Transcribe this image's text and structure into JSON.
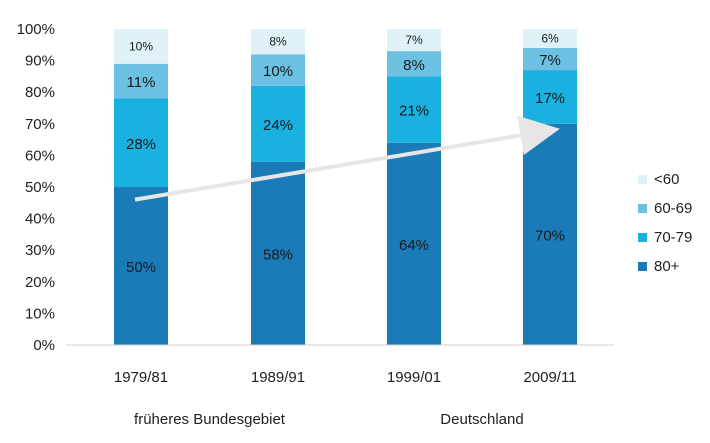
{
  "chart_data": {
    "type": "bar",
    "stacked": true,
    "categories": [
      "1979/81",
      "1989/91",
      "1999/01",
      "2009/11"
    ],
    "series": [
      {
        "name": "80+",
        "values": [
          50,
          58,
          64,
          70
        ],
        "color": "#1a7bb8"
      },
      {
        "name": "70-79",
        "values": [
          28,
          24,
          21,
          17
        ],
        "color": "#1ab0e0"
      },
      {
        "name": "60-69",
        "values": [
          11,
          10,
          8,
          7
        ],
        "color": "#6cc0e2"
      },
      {
        "name": "<60",
        "values": [
          10,
          8,
          7,
          6
        ],
        "color": "#e0f1f8"
      }
    ],
    "data_labels": [
      [
        "50%",
        "58%",
        "64%",
        "70%"
      ],
      [
        "28%",
        "24%",
        "21%",
        "17%"
      ],
      [
        "11%",
        "10%",
        "8%",
        "7%"
      ],
      [
        "10%",
        "8%",
        "7%",
        "6%"
      ]
    ],
    "legend_order": [
      "<60",
      "60-69",
      "70-79",
      "80+"
    ],
    "legend_position": "right",
    "y_ticks": [
      "0%",
      "10%",
      "20%",
      "30%",
      "40%",
      "50%",
      "60%",
      "70%",
      "80%",
      "90%",
      "100%"
    ],
    "ylim": [
      0,
      100
    ],
    "grid": false,
    "groups": [
      {
        "label": "früheres Bundesgebiet",
        "categories": [
          "1979/81",
          "1989/91"
        ]
      },
      {
        "label": "Deutschland",
        "categories": [
          "1999/01",
          "2009/11"
        ]
      }
    ],
    "trend_arrow": {
      "from": {
        "category": "1979/81",
        "y": 46
      },
      "to": {
        "category": "2009/11",
        "y": 68
      },
      "color": "#e6e6e6"
    }
  }
}
